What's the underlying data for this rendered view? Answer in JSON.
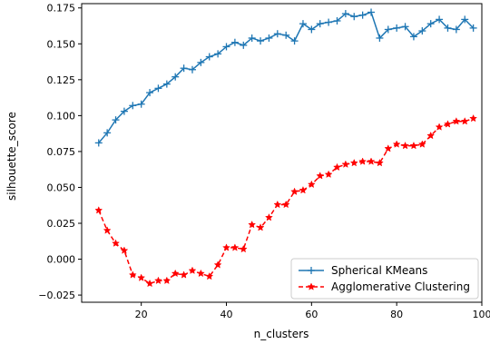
{
  "chart_data": {
    "type": "line",
    "title": "",
    "xlabel": "n_clusters",
    "ylabel": "silhouette_score",
    "xlim": [
      6,
      100
    ],
    "ylim": [
      -0.03,
      0.178
    ],
    "xticks": [
      20,
      40,
      60,
      80,
      100
    ],
    "yticks": [
      -0.025,
      0.0,
      0.025,
      0.05,
      0.075,
      0.1,
      0.125,
      0.15,
      0.175
    ],
    "xtick_labels": [
      "20",
      "40",
      "60",
      "80",
      "100"
    ],
    "ytick_labels": [
      "−0.025",
      "0.000",
      "0.025",
      "0.050",
      "0.075",
      "0.100",
      "0.125",
      "0.150",
      "0.175"
    ],
    "grid": false,
    "legend_position": "lower-right",
    "x": [
      10,
      12,
      14,
      16,
      18,
      20,
      22,
      24,
      26,
      28,
      30,
      32,
      34,
      36,
      38,
      40,
      42,
      44,
      46,
      48,
      50,
      52,
      54,
      56,
      58,
      60,
      62,
      64,
      66,
      68,
      70,
      72,
      74,
      76,
      78,
      80,
      82,
      84,
      86,
      88,
      90,
      92,
      94,
      96,
      98
    ],
    "series": [
      {
        "name": "Spherical KMeans",
        "color": "#1f77b4",
        "style": "solid",
        "marker": "plus",
        "values": [
          0.081,
          0.088,
          0.097,
          0.103,
          0.107,
          0.108,
          0.116,
          0.119,
          0.122,
          0.127,
          0.133,
          0.132,
          0.137,
          0.141,
          0.143,
          0.148,
          0.151,
          0.149,
          0.154,
          0.152,
          0.154,
          0.157,
          0.156,
          0.152,
          0.164,
          0.16,
          0.164,
          0.165,
          0.166,
          0.171,
          0.169,
          0.17,
          0.172,
          0.154,
          0.16,
          0.161,
          0.162,
          0.155,
          0.159,
          0.164,
          0.167,
          0.161,
          0.16,
          0.167,
          0.161
        ]
      },
      {
        "name": "Agglomerative Clustering",
        "color": "#ff0000",
        "style": "dashed",
        "marker": "star",
        "values": [
          0.034,
          0.02,
          0.011,
          0.006,
          -0.011,
          -0.013,
          -0.017,
          -0.015,
          -0.015,
          -0.01,
          -0.011,
          -0.008,
          -0.01,
          -0.012,
          -0.004,
          0.008,
          0.008,
          0.007,
          0.024,
          0.022,
          0.029,
          0.038,
          0.038,
          0.047,
          0.048,
          0.052,
          0.058,
          0.059,
          0.064,
          0.066,
          0.067,
          0.068,
          0.068,
          0.067,
          0.077,
          0.08,
          0.079,
          0.079,
          0.08,
          0.086,
          0.092,
          0.094,
          0.096,
          0.096,
          0.098
        ]
      }
    ]
  }
}
